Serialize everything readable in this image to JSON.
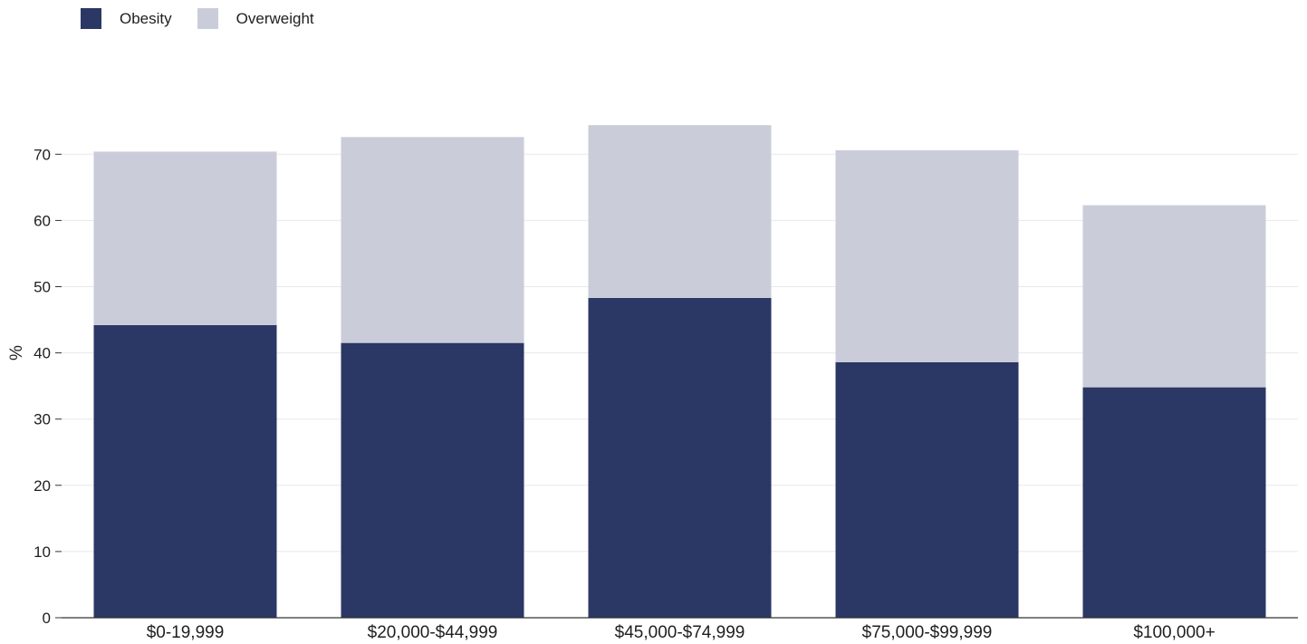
{
  "chart_data": {
    "type": "bar",
    "stacked": true,
    "categories": [
      "$0-19,999",
      "$20,000-$44,999",
      "$45,000-$74,999",
      "$75,000-$99,999",
      "$100,000+"
    ],
    "series": [
      {
        "name": "Obesity",
        "values": [
          44.2,
          41.5,
          48.3,
          38.6,
          34.8
        ],
        "color": "#2b3764"
      },
      {
        "name": "Overweight",
        "values": [
          26.2,
          31.1,
          26.1,
          32.0,
          27.5
        ],
        "color": "#cacdd9"
      }
    ],
    "ylabel": "%",
    "ylim": [
      0,
      80
    ],
    "yticks": [
      0,
      10,
      20,
      30,
      40,
      50,
      60,
      70
    ],
    "grid": true,
    "legend_position": "top-left"
  },
  "legend": {
    "items": [
      {
        "label": "Obesity",
        "color": "#2b3764"
      },
      {
        "label": "Overweight",
        "color": "#cacdd9"
      }
    ]
  }
}
